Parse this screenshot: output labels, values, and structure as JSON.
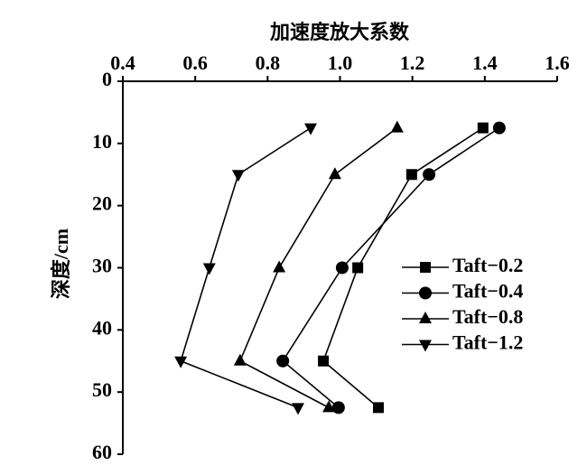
{
  "chart_data": {
    "type": "line",
    "title": "加速度放大系数",
    "y_label": "深度/cm",
    "y": [
      7.5,
      15,
      30,
      45,
      52.5
    ],
    "xlim": [
      0.4,
      1.6
    ],
    "xticks": [
      0.4,
      0.6,
      0.8,
      {
        "value": 1,
        "label": "1.0"
      },
      1.2,
      1.4,
      1.6
    ],
    "ylim": [
      0,
      60
    ],
    "yticks": [
      0,
      10,
      20,
      30,
      40,
      50,
      60
    ],
    "y_inverted": true,
    "legend": "right",
    "series": [
      {
        "name": "Taft−0.2",
        "color": "#000000",
        "marker": "square",
        "values": [
          1.395,
          1.198,
          1.049,
          0.954,
          1.106
        ]
      },
      {
        "name": "Taft−0.4",
        "color": "#000000",
        "marker": "circle",
        "values": [
          1.44,
          1.246,
          1.006,
          0.842,
          0.996
        ]
      },
      {
        "name": "Taft−0.8",
        "color": "#000000",
        "marker": "triangle-up",
        "values": [
          1.158,
          0.986,
          0.832,
          0.724,
          0.969
        ]
      },
      {
        "name": "Taft−1.2",
        "color": "#000000",
        "marker": "triangle-down",
        "values": [
          0.919,
          0.719,
          0.639,
          0.56,
          0.884
        ]
      }
    ]
  }
}
